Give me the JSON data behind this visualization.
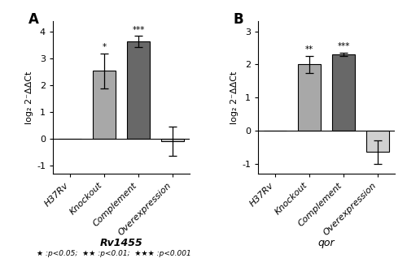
{
  "panel_A": {
    "label": "A",
    "categories": [
      "H37Rv",
      "Knockout",
      "Complement",
      "Overexpression"
    ],
    "values": [
      0.0,
      2.55,
      3.65,
      -0.1
    ],
    "errors": [
      0.0,
      0.65,
      0.2,
      0.55
    ],
    "bar_colors": [
      "#b8b8b8",
      "#a8a8a8",
      "#686868",
      "#d0d0d0"
    ],
    "bar_edgecolor": "#000000",
    "ylim": [
      -1.3,
      4.4
    ],
    "yticks": [
      -1,
      0,
      1,
      2,
      3,
      4
    ],
    "ylabel": "log₂ 2⁻ΔΔCt",
    "significance": [
      "",
      "*",
      "***",
      ""
    ],
    "title": "Rv1455",
    "legend_text": "★ :p<0.05;  ★★ :p<0.01;  ★★★ :p<0.001"
  },
  "panel_B": {
    "label": "B",
    "categories": [
      "H37Rv",
      "Knockout",
      "Complement",
      "Overexpression"
    ],
    "values": [
      0.0,
      2.0,
      2.3,
      -0.65
    ],
    "errors": [
      0.0,
      0.25,
      0.05,
      0.35
    ],
    "bar_colors": [
      "#b8b8b8",
      "#a8a8a8",
      "#686868",
      "#d0d0d0"
    ],
    "bar_edgecolor": "#000000",
    "ylim": [
      -1.3,
      3.3
    ],
    "yticks": [
      -1,
      0,
      1,
      2,
      3
    ],
    "ylabel": "log₂ 2⁻ΔΔCt",
    "significance": [
      "",
      "**",
      "***",
      ""
    ],
    "title": "qor"
  },
  "figure_legend": "★ :p<0.05;  ★★ :p<0.01;  ★★★ :p<0.001"
}
